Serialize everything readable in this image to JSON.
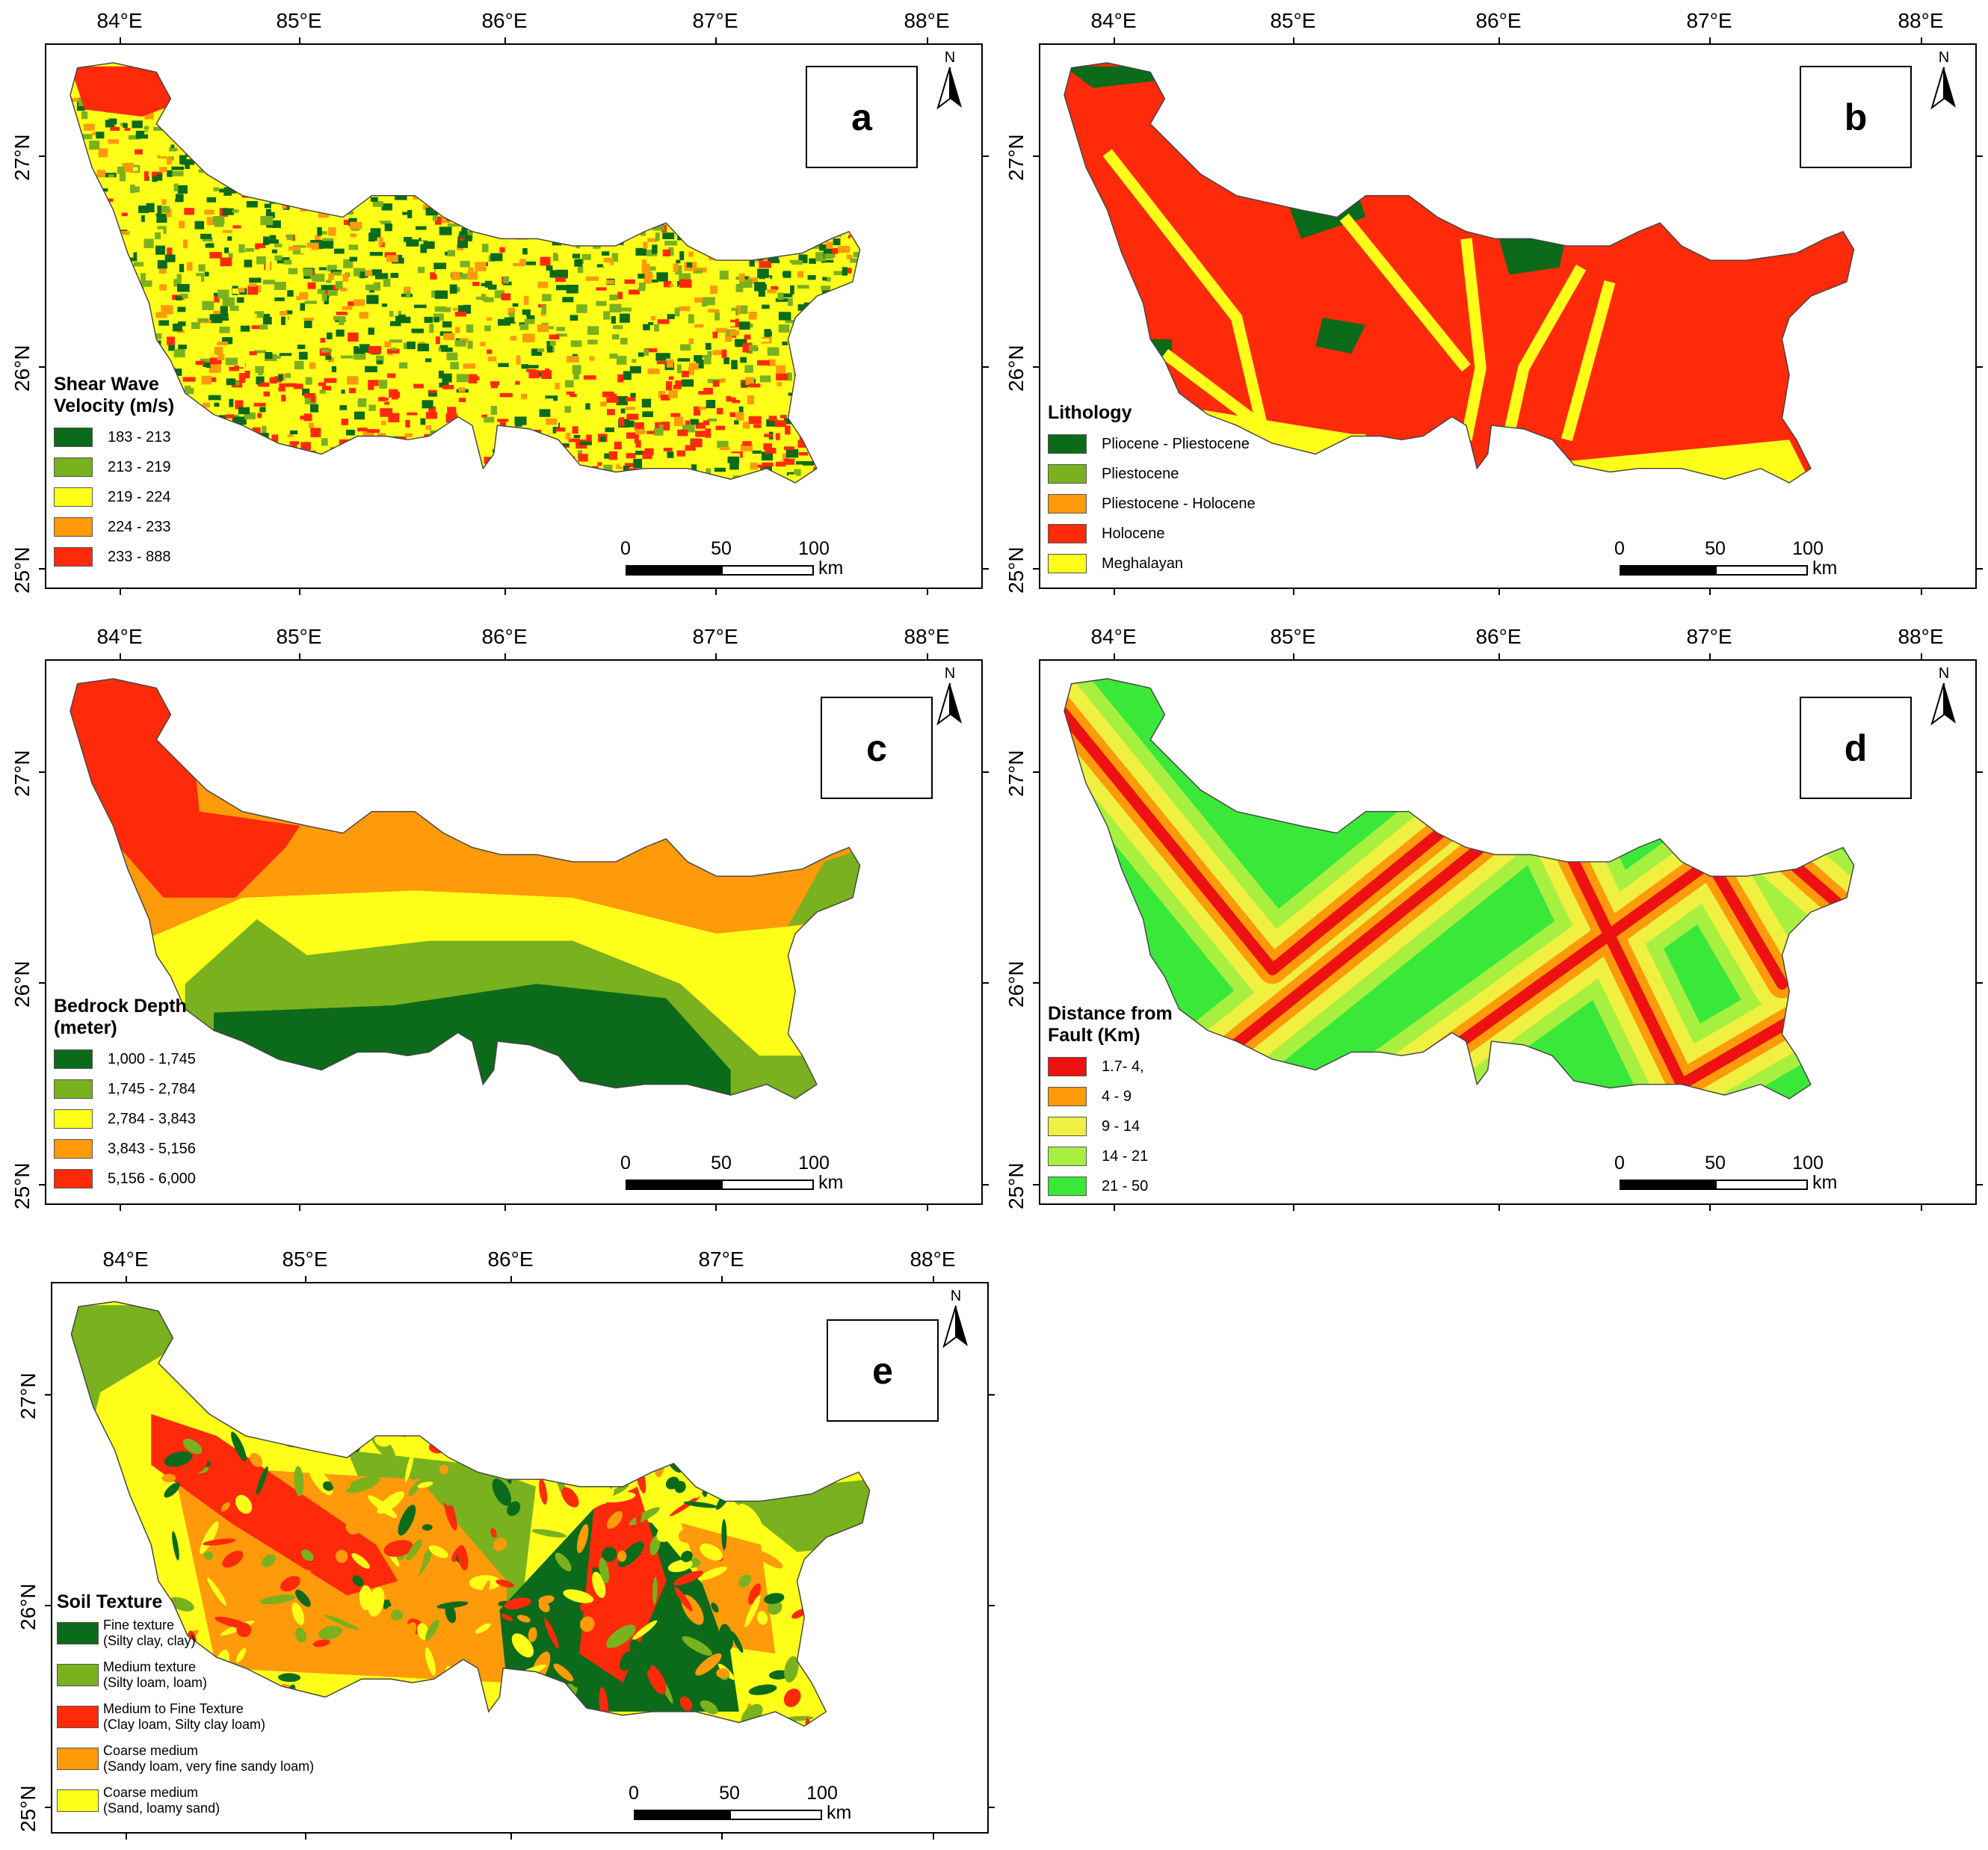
{
  "figure": {
    "longitude_labels": [
      "84°E",
      "85°E",
      "86°E",
      "87°E",
      "88°E"
    ],
    "latitude_labels": [
      "27°N",
      "26°N",
      "25°N"
    ],
    "north_arrow_letter": "N",
    "scale_bar": {
      "ticks": [
        "0",
        "50",
        "100"
      ],
      "unit": "km"
    }
  },
  "panels": [
    {
      "letter": "a",
      "legend_title": [
        "Shear Wave",
        "Velocity (m/s)"
      ],
      "legend": [
        {
          "label": "183 - 213",
          "color": "#0b6b1a"
        },
        {
          "label": "213 - 219",
          "color": "#7ab11e"
        },
        {
          "label": "219 - 224",
          "color": "#ffff1a"
        },
        {
          "label": "224 - 233",
          "color": "#ff9a0a"
        },
        {
          "label": "233 - 888",
          "color": "#ff2a0a"
        }
      ]
    },
    {
      "letter": "b",
      "legend_title": [
        "Lithology"
      ],
      "legend": [
        {
          "label": "Pliocene - Pliestocene",
          "color": "#0b6b1a"
        },
        {
          "label": "Pliestocene",
          "color": "#7ab11e"
        },
        {
          "label": "Pliestocene - Holocene",
          "color": "#ff9a0a"
        },
        {
          "label": "Holocene",
          "color": "#ff2a0a"
        },
        {
          "label": "Meghalayan",
          "color": "#ffff1a"
        }
      ]
    },
    {
      "letter": "c",
      "legend_title": [
        "Bedrock Depth",
        "(meter)"
      ],
      "legend": [
        {
          "label": "1,000 - 1,745",
          "color": "#0b6b1a"
        },
        {
          "label": "1,745 - 2,784",
          "color": "#7ab11e"
        },
        {
          "label": "2,784 - 3,843",
          "color": "#ffff1a"
        },
        {
          "label": "3,843 - 5,156",
          "color": "#ff9a0a"
        },
        {
          "label": "5,156 - 6,000",
          "color": "#ff2a0a"
        }
      ]
    },
    {
      "letter": "d",
      "legend_title": [
        "Distance from",
        "Fault (Km)"
      ],
      "legend": [
        {
          "label": "1.7- 4,",
          "color": "#ee1111"
        },
        {
          "label": "4 - 9",
          "color": "#ff9a0a"
        },
        {
          "label": "9 - 14",
          "color": "#f0f040"
        },
        {
          "label": "14 - 21",
          "color": "#a8f040"
        },
        {
          "label": "21 - 50",
          "color": "#3ae83a"
        }
      ]
    },
    {
      "letter": "e",
      "legend_title": [
        "Soil Texture"
      ],
      "legend": [
        {
          "label": "Fine texture",
          "sublabel": "(Silty clay, clay)",
          "color": "#0b6b1a"
        },
        {
          "label": "Medium texture",
          "sublabel": "(Silty loam, loam)",
          "color": "#7ab11e"
        },
        {
          "label": "Medium to Fine Texture",
          "sublabel": "(Clay loam, Silty clay loam)",
          "color": "#ff2a0a"
        },
        {
          "label": "Coarse medium",
          "sublabel": "(Sandy loam, very fine sandy loam)",
          "color": "#ff9a0a"
        },
        {
          "label": "Coarse medium",
          "sublabel": "(Sand, loamy sand)",
          "color": "#ffff1a"
        }
      ]
    }
  ]
}
